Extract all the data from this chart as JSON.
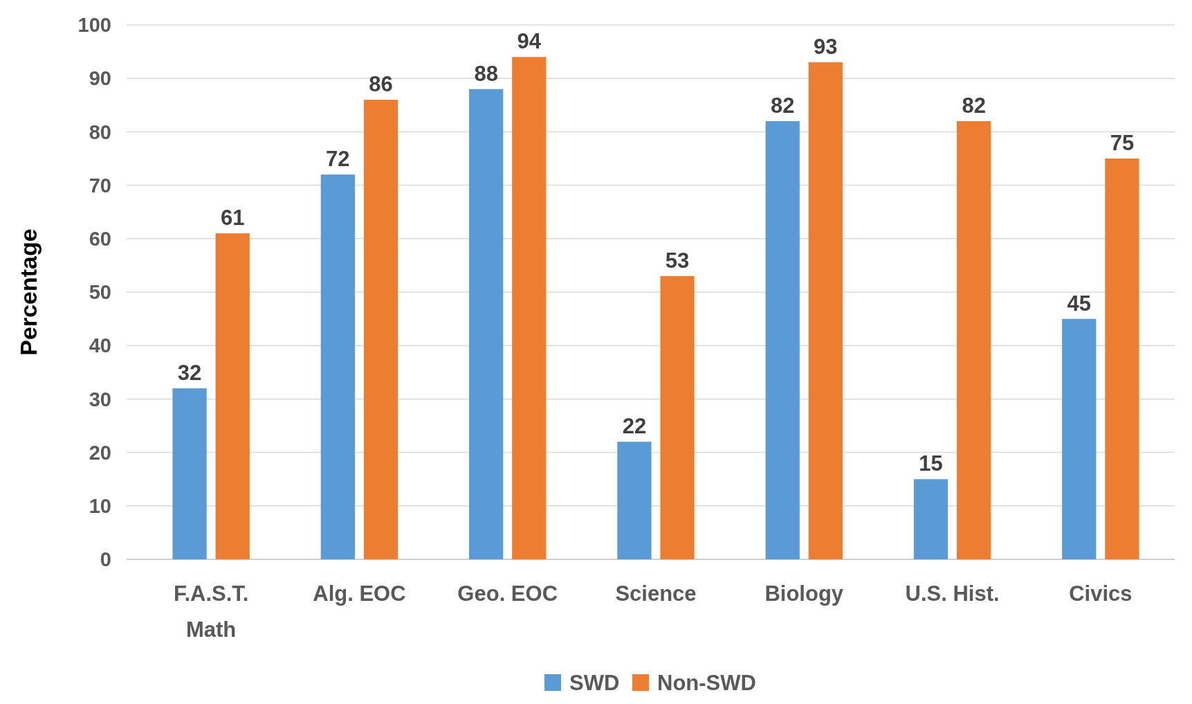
{
  "chart_data": {
    "type": "bar",
    "ylabel": "Percentage",
    "categories": [
      "F.A.S.T. Math",
      "Alg. EOC",
      "Geo. EOC",
      "Science",
      "Biology",
      "U.S. Hist.",
      "Civics"
    ],
    "series": [
      {
        "name": "SWD",
        "color": "#5b9bd5",
        "values": [
          32,
          72,
          88,
          22,
          82,
          15,
          45
        ]
      },
      {
        "name": "Non-SWD",
        "color": "#ed7d31",
        "values": [
          61,
          86,
          94,
          53,
          93,
          82,
          75
        ]
      }
    ],
    "ylim": [
      0,
      100
    ],
    "yticks": [
      0,
      10,
      20,
      30,
      40,
      50,
      60,
      70,
      80,
      90,
      100
    ],
    "grid": "y",
    "legend": "bottom",
    "data_labels": true
  }
}
